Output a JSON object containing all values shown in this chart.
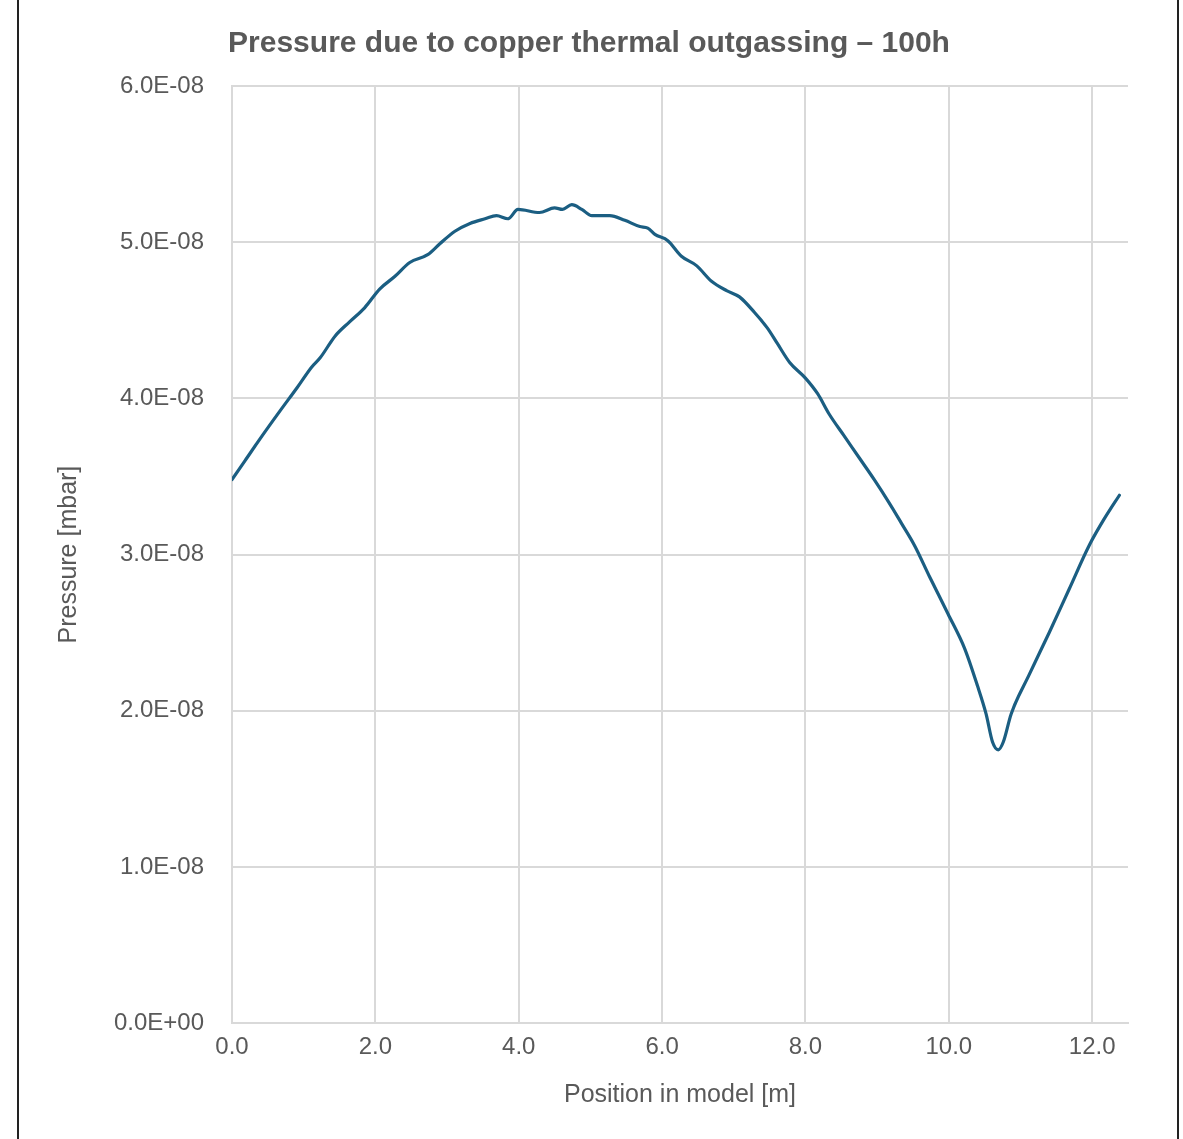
{
  "chart_data": {
    "type": "line",
    "title": "Pressure due to copper thermal outgassing – 100h",
    "xlabel": "Position in model [m]",
    "ylabel": "Pressure [mbar]",
    "xlim": [
      0,
      12.5
    ],
    "xticks": [
      {
        "value": 0,
        "label": "0.0"
      },
      {
        "value": 2,
        "label": "2.0"
      },
      {
        "value": 4,
        "label": "4.0"
      },
      {
        "value": 6,
        "label": "6.0"
      },
      {
        "value": 8,
        "label": "8.0"
      },
      {
        "value": 10,
        "label": "10.0"
      },
      {
        "value": 12,
        "label": "12.0"
      }
    ],
    "ylim": [
      0,
      6e-08
    ],
    "yticks": [
      {
        "value": 0,
        "label": "0.0E+00"
      },
      {
        "value": 1e-08,
        "label": "1.0E-08"
      },
      {
        "value": 2e-08,
        "label": "2.0E-08"
      },
      {
        "value": 3e-08,
        "label": "3.0E-08"
      },
      {
        "value": 4e-08,
        "label": "4.0E-08"
      },
      {
        "value": 5e-08,
        "label": "5.0E-08"
      },
      {
        "value": 6e-08,
        "label": "6.0E-08"
      }
    ],
    "grid": true,
    "marker": "none",
    "line_style": "solid",
    "series": [
      {
        "color": "#1b5e82",
        "x": [
          0,
          0.18,
          0.42,
          0.67,
          0.91,
          1.11,
          1.23,
          1.44,
          1.64,
          1.85,
          2.06,
          2.27,
          2.48,
          2.73,
          2.9,
          3.11,
          3.32,
          3.53,
          3.69,
          3.85,
          3.99,
          4.29,
          4.5,
          4.61,
          4.74,
          4.88,
          5.02,
          5.27,
          5.48,
          5.69,
          5.8,
          5.9,
          6.08,
          6.27,
          6.48,
          6.69,
          6.9,
          7.08,
          7.29,
          7.47,
          7.61,
          7.78,
          8.0,
          8.17,
          8.33,
          8.54,
          8.75,
          8.96,
          9.17,
          9.34,
          9.52,
          9.73,
          9.99,
          10.22,
          10.4,
          10.52,
          10.61,
          10.69,
          10.76,
          10.87,
          11.12,
          11.4,
          11.68,
          11.96,
          12.17,
          12.38
        ],
        "values": [
          3.48e-08,
          3.6e-08,
          3.76e-08,
          3.92e-08,
          4.07e-08,
          4.2e-08,
          4.26e-08,
          4.4e-08,
          4.49e-08,
          4.58e-08,
          4.7e-08,
          4.78e-08,
          4.87e-08,
          4.92e-08,
          4.99e-08,
          5.07e-08,
          5.12e-08,
          5.15e-08,
          5.17e-08,
          5.15e-08,
          5.21e-08,
          5.19e-08,
          5.22e-08,
          5.21e-08,
          5.24e-08,
          5.21e-08,
          5.17e-08,
          5.17e-08,
          5.14e-08,
          5.1e-08,
          5.09e-08,
          5.05e-08,
          5.01e-08,
          4.91e-08,
          4.85e-08,
          4.75e-08,
          4.69e-08,
          4.65e-08,
          4.55e-08,
          4.45e-08,
          4.35e-08,
          4.23e-08,
          4.13e-08,
          4.03e-08,
          3.9e-08,
          3.76e-08,
          3.62e-08,
          3.48e-08,
          3.33e-08,
          3.2e-08,
          3.06e-08,
          2.86e-08,
          2.62e-08,
          2.4e-08,
          2.16e-08,
          1.98e-08,
          1.8e-08,
          1.75e-08,
          1.8e-08,
          1.98e-08,
          2.23e-08,
          2.5e-08,
          2.78e-08,
          3.06e-08,
          3.23e-08,
          3.38e-08
        ]
      }
    ]
  }
}
